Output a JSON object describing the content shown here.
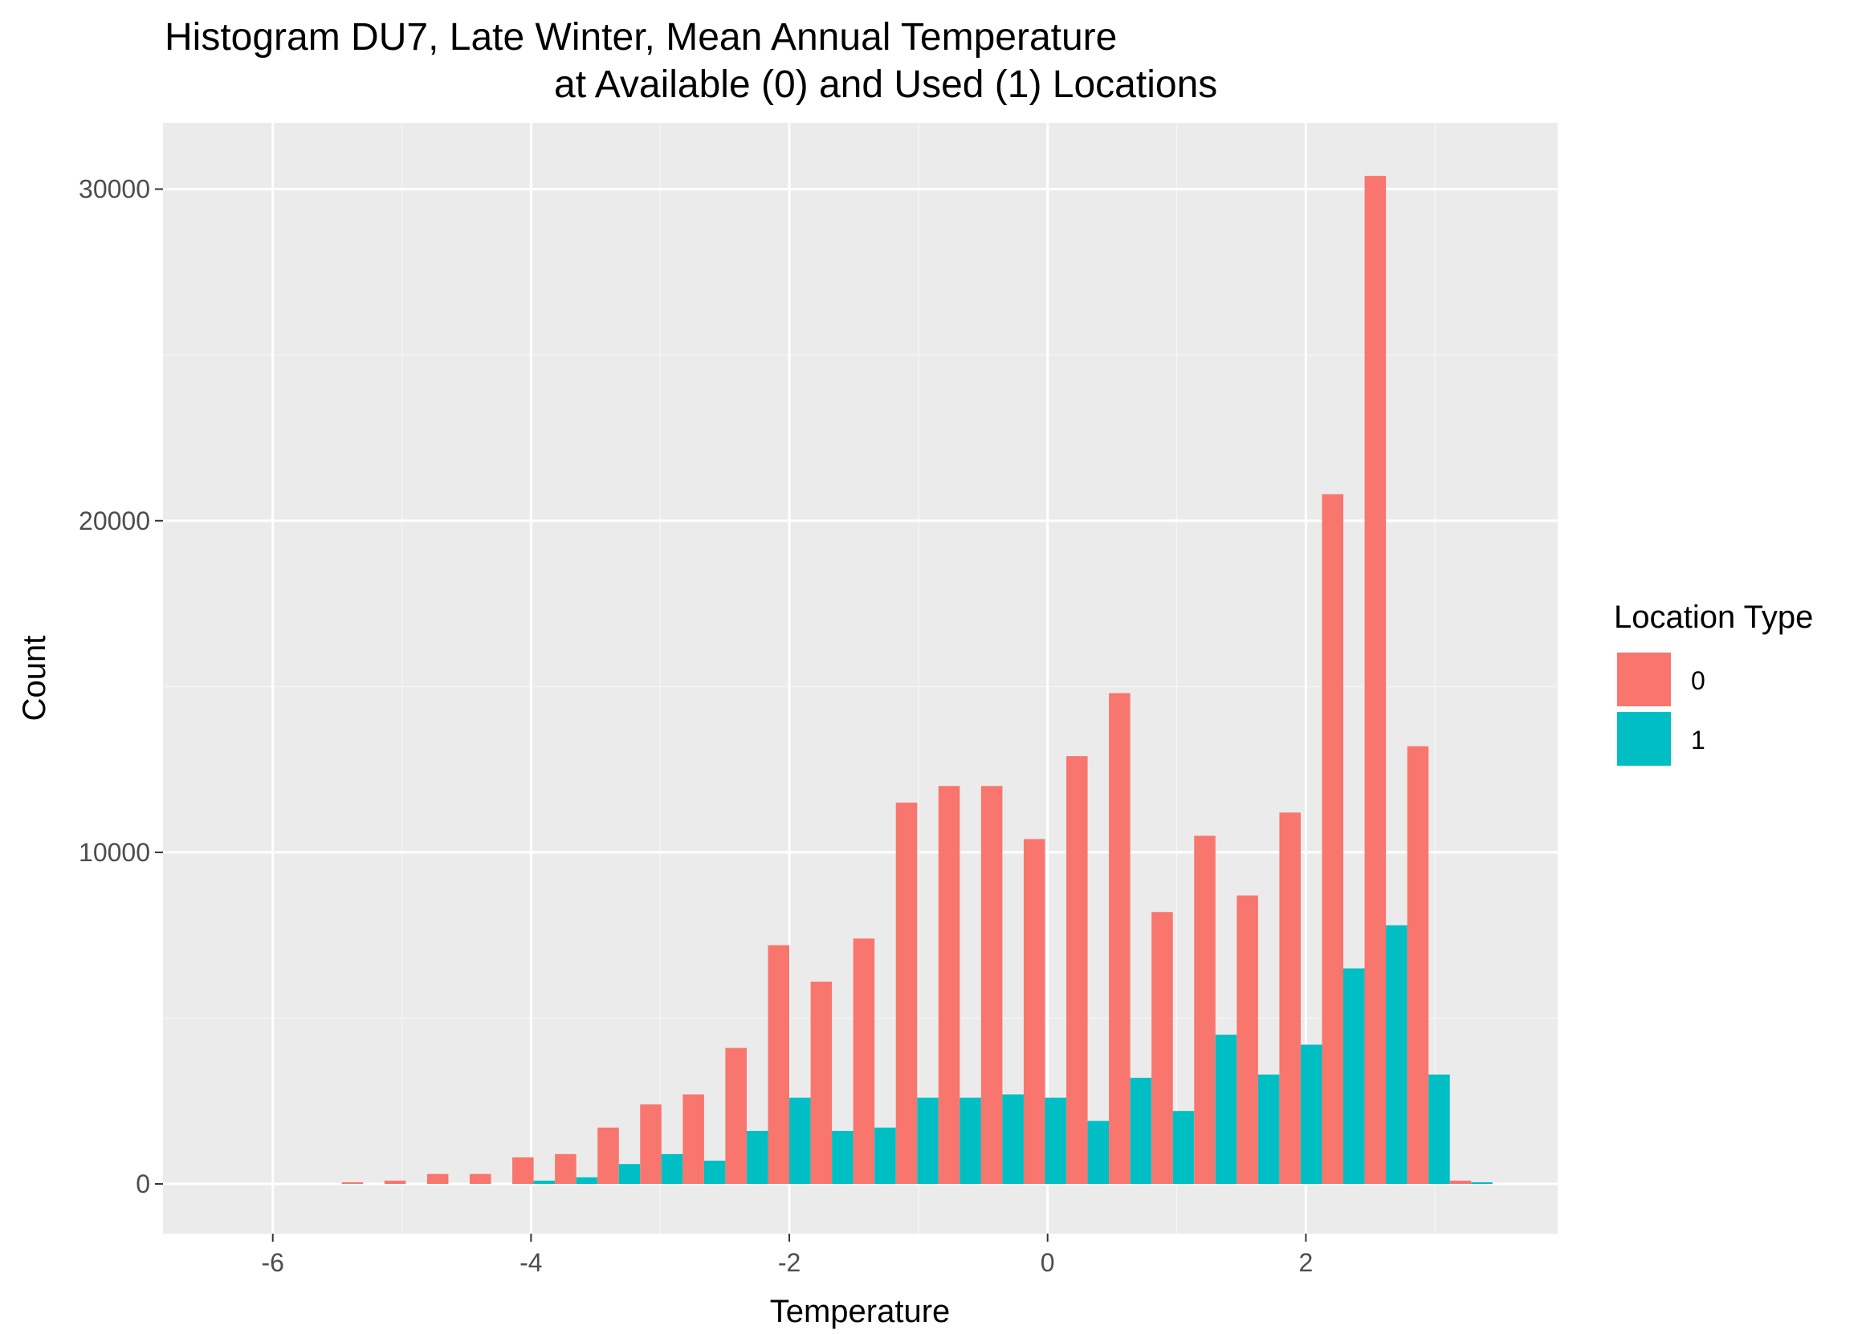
{
  "chart_data": {
    "type": "bar",
    "title_line1": "Histogram DU7, Late Winter, Mean Annual Temperature",
    "title_line2": "at Available (0) and Used (1) Locations",
    "xlabel": "Temperature",
    "ylabel": "Count",
    "xlim": [
      -6.85,
      3.95
    ],
    "ylim": [
      -1500,
      32000
    ],
    "x_ticks": [
      -6,
      -4,
      -2,
      0,
      2
    ],
    "x_tick_labels": [
      "-6",
      "-4",
      "-2",
      "0",
      "2"
    ],
    "y_ticks": [
      0,
      10000,
      20000,
      30000
    ],
    "y_tick_labels": [
      "0",
      "10000",
      "20000",
      "30000"
    ],
    "grid": true,
    "legend_position": "right",
    "legend_title": "Location Type",
    "bin_width": 0.33,
    "bin_centers": [
      -5.3,
      -4.97,
      -4.64,
      -4.31,
      -3.98,
      -3.65,
      -3.32,
      -2.99,
      -2.66,
      -2.33,
      -2.0,
      -1.67,
      -1.34,
      -1.01,
      -0.68,
      -0.35,
      -0.02,
      0.31,
      0.64,
      0.97,
      1.3,
      1.63,
      1.96,
      2.29,
      2.62,
      2.95,
      3.28
    ],
    "series": [
      {
        "name": "0",
        "color": "#F8766D",
        "values": [
          50,
          100,
          300,
          300,
          800,
          900,
          1700,
          2400,
          2700,
          4100,
          7200,
          6100,
          7400,
          11500,
          12000,
          12000,
          10400,
          12900,
          14800,
          8200,
          10500,
          8700,
          11200,
          20800,
          30400,
          13200,
          100
        ]
      },
      {
        "name": "1",
        "color": "#00BFC4",
        "values": [
          0,
          0,
          0,
          0,
          100,
          200,
          600,
          900,
          700,
          1600,
          2600,
          1600,
          1700,
          2600,
          2600,
          2700,
          2600,
          1900,
          3200,
          2200,
          4500,
          3300,
          4200,
          6500,
          7800,
          3300,
          50
        ]
      }
    ]
  },
  "style": {
    "panel_bg": "#EBEBEB",
    "grid_major": "#FFFFFF",
    "grid_minor": "#F5F5F5",
    "tick_color": "#333333"
  }
}
